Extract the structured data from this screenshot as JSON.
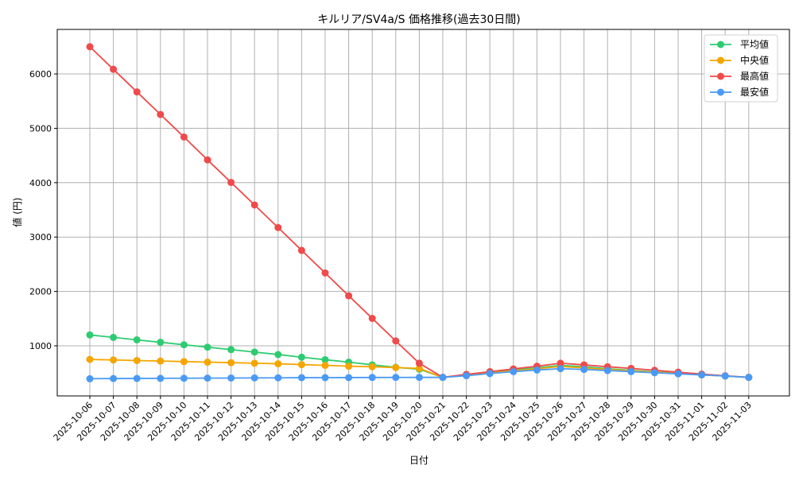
{
  "chart_data": {
    "type": "line",
    "title": "キルリア/SV4a/S 価格推移(過去30日間)",
    "xlabel": "日付",
    "ylabel": "値 (円)",
    "ylim": [
      0,
      6800
    ],
    "yticks": [
      1000,
      2000,
      3000,
      4000,
      5000,
      6000
    ],
    "grid": true,
    "legend_position": "upper right",
    "categories": [
      "2025-10-06",
      "2025-10-07",
      "2025-10-08",
      "2025-10-09",
      "2025-10-10",
      "2025-10-11",
      "2025-10-12",
      "2025-10-13",
      "2025-10-14",
      "2025-10-15",
      "2025-10-16",
      "2025-10-17",
      "2025-10-18",
      "2025-10-19",
      "2025-10-20",
      "2025-10-21",
      "2025-10-22",
      "2025-10-23",
      "2025-10-24",
      "2025-10-25",
      "2025-10-26",
      "2025-10-27",
      "2025-10-28",
      "2025-10-29",
      "2025-10-30",
      "2025-10-31",
      "2025-11-01",
      "2025-11-02",
      "2025-11-03"
    ],
    "series": [
      {
        "name": "平均値",
        "color": "#2ecc71",
        "values": [
          1200,
          1155,
          1110,
          1065,
          1020,
          975,
          930,
          885,
          840,
          790,
          745,
          700,
          650,
          605,
          570,
          420,
          465,
          510,
          555,
          595,
          640,
          615,
          580,
          550,
          520,
          495,
          470,
          445,
          420
        ]
      },
      {
        "name": "中央値",
        "color": "#f5a500",
        "values": [
          750,
          740,
          730,
          720,
          710,
          700,
          690,
          680,
          670,
          655,
          640,
          625,
          615,
          600,
          585,
          420,
          460,
          500,
          540,
          580,
          620,
          595,
          565,
          540,
          515,
          490,
          465,
          445,
          420
        ]
      },
      {
        "name": "最高値",
        "color": "#f04a4a",
        "values": [
          6500,
          6085,
          5670,
          5255,
          4840,
          4420,
          4005,
          3590,
          3175,
          2755,
          2340,
          1920,
          1505,
          1090,
          680,
          420,
          475,
          525,
          575,
          625,
          680,
          650,
          615,
          585,
          550,
          515,
          480,
          450,
          420
        ]
      },
      {
        "name": "最安値",
        "color": "#4a9af5",
        "values": [
          395,
          398,
          400,
          402,
          404,
          406,
          408,
          410,
          412,
          414,
          415,
          416,
          418,
          419,
          420,
          420,
          450,
          490,
          525,
          555,
          580,
          565,
          545,
          525,
          505,
          485,
          465,
          445,
          420
        ]
      }
    ]
  }
}
